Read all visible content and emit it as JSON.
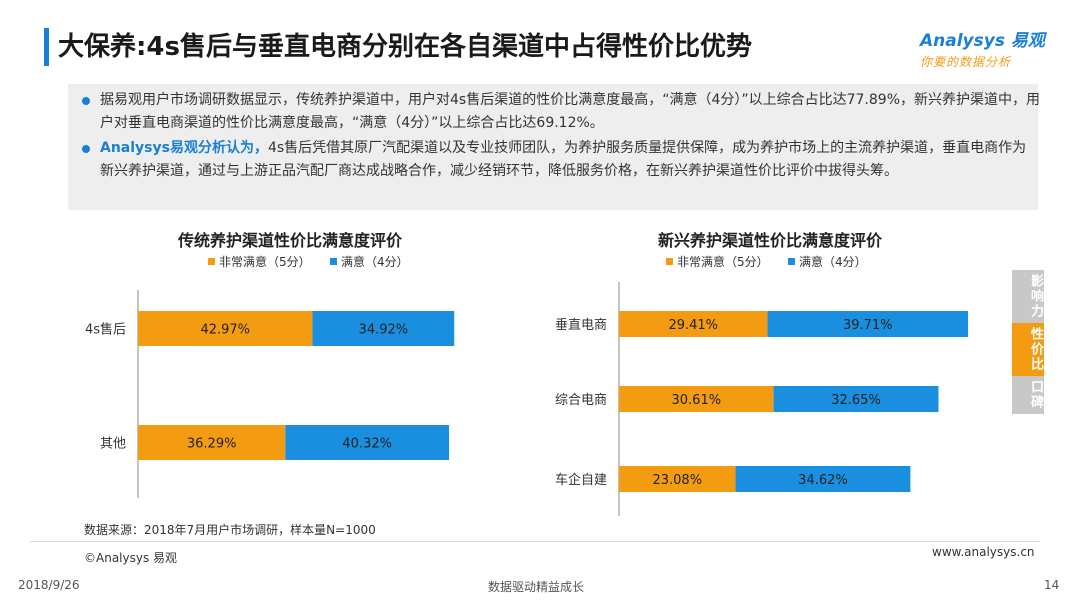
{
  "header": {
    "title": "大保养:4s售后与垂直电商分别在各自渠道中占得性价比优势",
    "logo_main": "Analysys 易观",
    "logo_sub": "你要的数据分析"
  },
  "summary": {
    "bullet1": "据易观用户市场调研数据显示，传统养护渠道中，用户对4s售后渠道的性价比满意度最高，“满意（4分）”以上综合占比达77.89%，新兴养护渠道中，用户对垂直电商渠道的性价比满意度最高，“满意（4分）”以上综合占比达69.12%。",
    "bullet2_em": "Analysys易观分析认为，",
    "bullet2_rest": "4s售后凭借其原厂汽配渠道以及专业技师团队，为养护服务质量提供保障，成为养护市场上的主流养护渠道，垂直电商作为新兴养护渠道，通过与上游正品汽配厂商达成战略合作，减少经销环节，降低服务价格，在新兴养护渠道性价比评价中拔得头筹。"
  },
  "side_tabs": [
    {
      "label": "影响力",
      "active": false
    },
    {
      "label": "性价比",
      "active": true
    },
    {
      "label": "口碑",
      "active": false
    }
  ],
  "colors": {
    "orange": "#f39c12",
    "blue": "#1a8fe0",
    "tab_inactive": "#c8c8c8"
  },
  "chart_data": [
    {
      "type": "bar",
      "stacked": true,
      "orientation": "horizontal",
      "title": "传统养护渠道性价比满意度评价",
      "categories": [
        "4s售后",
        "其他"
      ],
      "series": [
        {
          "name": "非常满意（5分）",
          "values": [
            42.97,
            36.29
          ]
        },
        {
          "name": "满意（4分）",
          "values": [
            34.92,
            40.32
          ]
        }
      ],
      "labels": [
        [
          "42.97%",
          "34.92%"
        ],
        [
          "36.29%",
          "40.32%"
        ]
      ]
    },
    {
      "type": "bar",
      "stacked": true,
      "orientation": "horizontal",
      "title": "新兴养护渠道性价比满意度评价",
      "categories": [
        "垂直电商",
        "综合电商",
        "车企自建"
      ],
      "series": [
        {
          "name": "非常满意（5分）",
          "values": [
            29.41,
            30.61,
            23.08
          ]
        },
        {
          "name": "满意（4分）",
          "values": [
            39.71,
            32.65,
            34.62
          ]
        }
      ],
      "labels": [
        [
          "29.41%",
          "39.71%"
        ],
        [
          "30.61%",
          "32.65%"
        ],
        [
          "23.08%",
          "34.62%"
        ]
      ]
    }
  ],
  "footer": {
    "source": "数据来源：2018年7月用户市场调研，样本量N=1000",
    "copyright": "©Analysys 易观",
    "website": "www.analysys.cn",
    "date": "2018/9/26",
    "slogan": "数据驱动精益成长",
    "page": "14"
  }
}
